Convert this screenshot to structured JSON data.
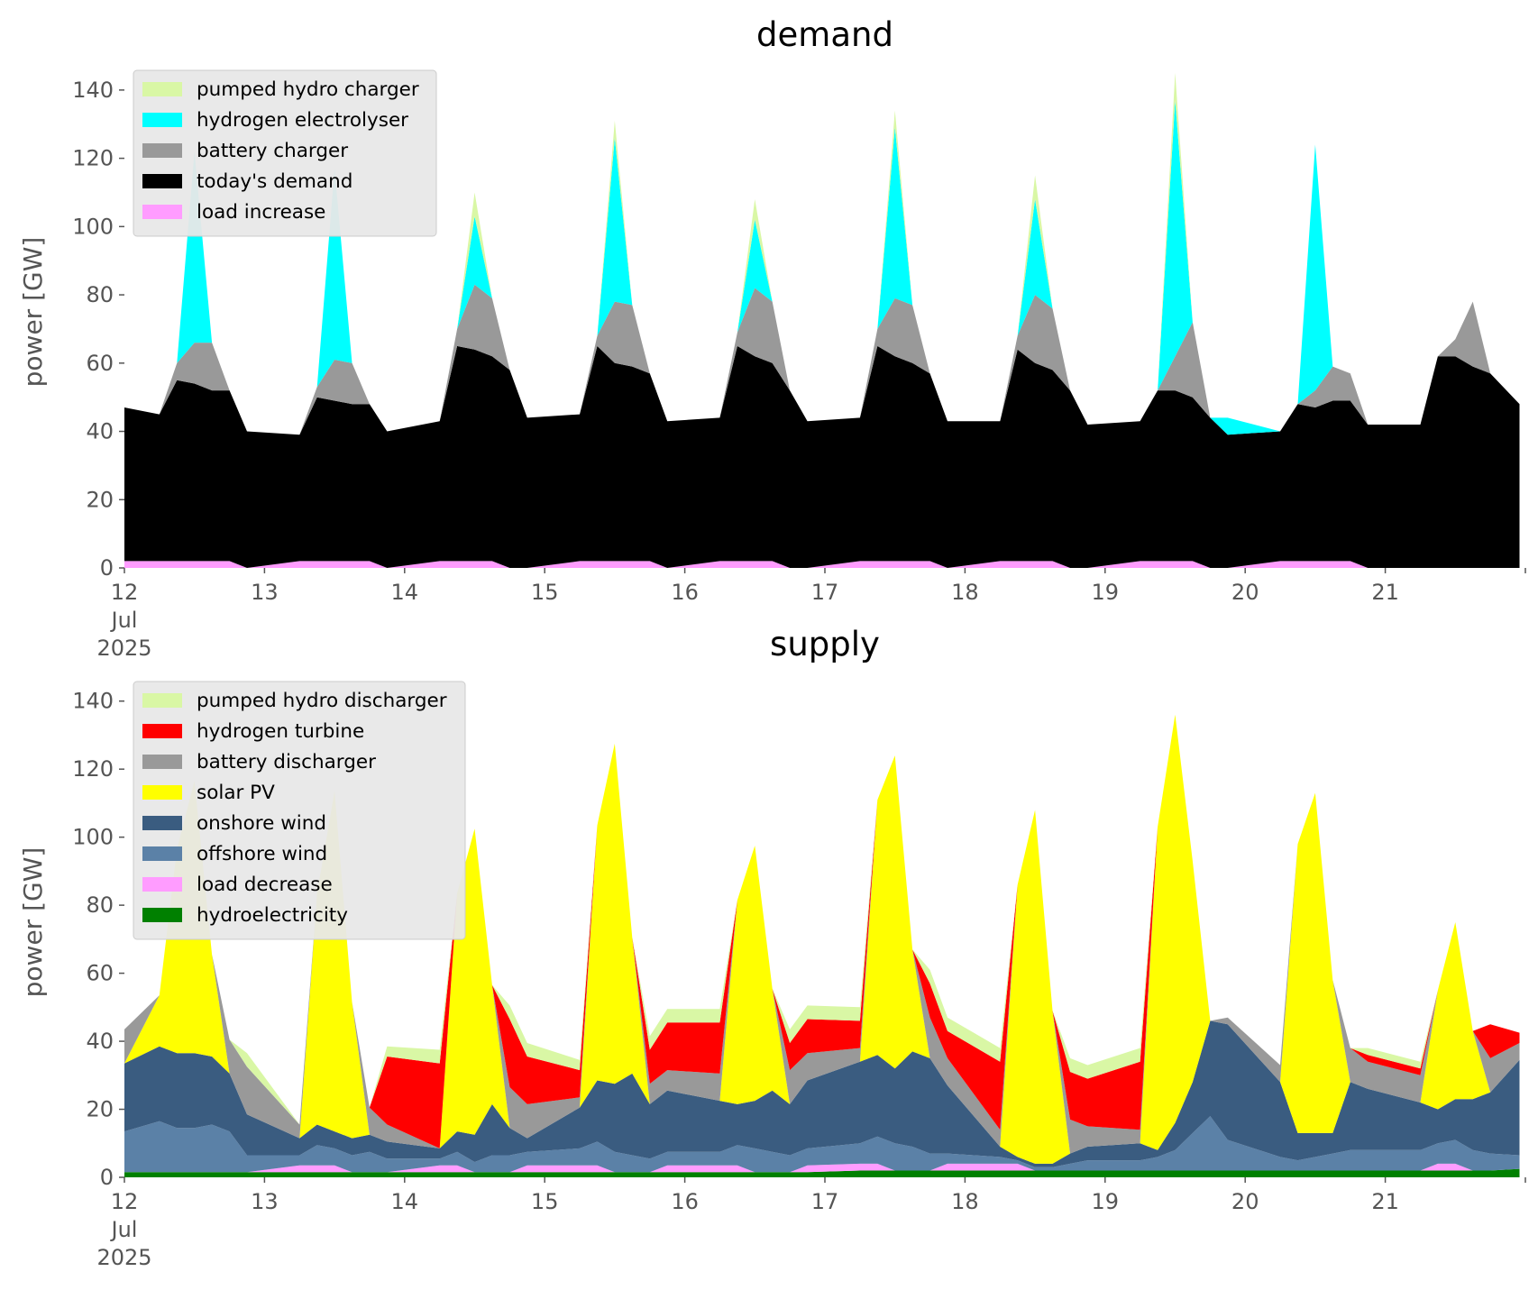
{
  "chart_data": [
    {
      "type": "area",
      "title": "demand",
      "ylabel": "power [GW]",
      "xlabel": "",
      "ylim": [
        0,
        150
      ],
      "xlim": [
        "2025-07-12",
        "2025-07-22"
      ],
      "yticks": [
        0,
        20,
        40,
        60,
        80,
        100,
        120,
        140
      ],
      "xticks": [
        {
          "date": "2025-07-12",
          "label": "12",
          "sub": [
            "Jul",
            "2025"
          ]
        },
        {
          "date": "2025-07-13",
          "label": "13"
        },
        {
          "date": "2025-07-14",
          "label": "14"
        },
        {
          "date": "2025-07-15",
          "label": "15"
        },
        {
          "date": "2025-07-16",
          "label": "16"
        },
        {
          "date": "2025-07-17",
          "label": "17"
        },
        {
          "date": "2025-07-18",
          "label": "18"
        },
        {
          "date": "2025-07-19",
          "label": "19"
        },
        {
          "date": "2025-07-20",
          "label": "20"
        },
        {
          "date": "2025-07-21",
          "label": "21"
        }
      ],
      "grid": false,
      "legend": "top-left",
      "x": [
        "2025-07-12 00:00",
        "2025-07-12 06:00",
        "2025-07-12 09:00",
        "2025-07-12 12:00",
        "2025-07-12 15:00",
        "2025-07-12 18:00",
        "2025-07-12 21:00",
        "2025-07-13 06:00",
        "2025-07-13 09:00",
        "2025-07-13 12:00",
        "2025-07-13 15:00",
        "2025-07-13 18:00",
        "2025-07-13 21:00",
        "2025-07-14 06:00",
        "2025-07-14 09:00",
        "2025-07-14 12:00",
        "2025-07-14 15:00",
        "2025-07-14 18:00",
        "2025-07-14 21:00",
        "2025-07-15 06:00",
        "2025-07-15 09:00",
        "2025-07-15 12:00",
        "2025-07-15 15:00",
        "2025-07-15 18:00",
        "2025-07-15 21:00",
        "2025-07-16 06:00",
        "2025-07-16 09:00",
        "2025-07-16 12:00",
        "2025-07-16 15:00",
        "2025-07-16 18:00",
        "2025-07-16 21:00",
        "2025-07-17 06:00",
        "2025-07-17 09:00",
        "2025-07-17 12:00",
        "2025-07-17 15:00",
        "2025-07-17 18:00",
        "2025-07-17 21:00",
        "2025-07-18 06:00",
        "2025-07-18 09:00",
        "2025-07-18 12:00",
        "2025-07-18 15:00",
        "2025-07-18 18:00",
        "2025-07-18 21:00",
        "2025-07-19 06:00",
        "2025-07-19 09:00",
        "2025-07-19 12:00",
        "2025-07-19 15:00",
        "2025-07-19 18:00",
        "2025-07-19 21:00",
        "2025-07-20 06:00",
        "2025-07-20 09:00",
        "2025-07-20 12:00",
        "2025-07-20 15:00",
        "2025-07-20 18:00",
        "2025-07-20 21:00",
        "2025-07-21 06:00",
        "2025-07-21 09:00",
        "2025-07-21 12:00",
        "2025-07-21 15:00",
        "2025-07-21 18:00",
        "2025-07-21 23:00"
      ],
      "series": [
        {
          "name": "load increase",
          "color": "#ff9cff",
          "values": [
            2,
            2,
            2,
            2,
            2,
            2,
            0,
            2,
            2,
            2,
            2,
            2,
            0,
            2,
            2,
            2,
            2,
            0,
            0,
            2,
            2,
            2,
            2,
            2,
            0,
            2,
            2,
            2,
            2,
            0,
            0,
            2,
            2,
            2,
            2,
            2,
            0,
            2,
            2,
            2,
            2,
            0,
            0,
            2,
            2,
            2,
            2,
            0,
            0,
            2,
            2,
            2,
            2,
            2,
            0,
            0,
            0,
            0,
            0,
            0,
            0
          ]
        },
        {
          "name": "today's demand",
          "color": "#000000",
          "values": [
            45,
            43,
            53,
            52,
            50,
            50,
            40,
            37,
            48,
            47,
            46,
            46,
            40,
            41,
            63,
            62,
            60,
            58,
            44,
            43,
            63,
            58,
            57,
            55,
            43,
            42,
            63,
            60,
            58,
            52,
            43,
            42,
            63,
            60,
            58,
            55,
            43,
            41,
            62,
            58,
            56,
            52,
            42,
            41,
            50,
            50,
            48,
            44,
            39,
            38,
            46,
            45,
            47,
            47,
            42,
            42,
            62,
            62,
            59,
            57,
            48
          ]
        },
        {
          "name": "battery charger",
          "color": "#999999",
          "values": [
            0,
            0,
            5,
            12,
            14,
            0,
            0,
            0,
            3,
            12,
            12,
            0,
            0,
            0,
            5,
            19,
            17,
            0,
            0,
            0,
            3,
            18,
            18,
            0,
            0,
            0,
            4,
            20,
            18,
            0,
            0,
            0,
            5,
            17,
            17,
            0,
            0,
            0,
            4,
            20,
            18,
            0,
            0,
            0,
            0,
            10,
            22,
            0,
            0,
            0,
            0,
            5,
            10,
            8,
            0,
            0,
            0,
            5,
            19,
            0,
            0
          ]
        },
        {
          "name": "hydrogen electrolyser",
          "color": "#00ffff",
          "values": [
            0,
            0,
            0,
            56,
            0,
            0,
            0,
            0,
            0,
            56,
            0,
            0,
            0,
            0,
            0,
            20,
            0,
            0,
            0,
            0,
            0,
            48,
            0,
            0,
            0,
            0,
            0,
            20,
            0,
            0,
            0,
            0,
            0,
            50,
            0,
            0,
            0,
            0,
            0,
            28,
            0,
            0,
            0,
            0,
            0,
            75,
            0,
            0,
            5,
            0,
            0,
            72,
            0,
            0,
            0,
            0,
            0,
            0,
            0,
            0,
            0
          ]
        },
        {
          "name": "pumped hydro charger",
          "color": "#d9f7a5",
          "values": [
            0,
            0,
            0,
            0,
            0,
            0,
            0,
            0,
            0,
            0,
            0,
            0,
            0,
            0,
            0,
            7,
            0,
            0,
            0,
            0,
            0,
            5,
            0,
            0,
            0,
            0,
            0,
            6,
            0,
            0,
            0,
            0,
            0,
            5,
            0,
            0,
            0,
            0,
            0,
            7,
            0,
            0,
            0,
            0,
            0,
            8,
            0,
            0,
            0,
            0,
            0,
            0,
            0,
            0,
            0,
            0,
            0,
            0,
            0,
            0,
            0
          ]
        }
      ]
    },
    {
      "type": "area",
      "title": "supply",
      "ylabel": "power [GW]",
      "xlabel": "",
      "ylim": [
        0,
        150
      ],
      "xlim": [
        "2025-07-12",
        "2025-07-22"
      ],
      "yticks": [
        0,
        20,
        40,
        60,
        80,
        100,
        120,
        140
      ],
      "xticks": [
        {
          "date": "2025-07-12",
          "label": "12",
          "sub": [
            "Jul",
            "2025"
          ]
        },
        {
          "date": "2025-07-13",
          "label": "13"
        },
        {
          "date": "2025-07-14",
          "label": "14"
        },
        {
          "date": "2025-07-15",
          "label": "15"
        },
        {
          "date": "2025-07-16",
          "label": "16"
        },
        {
          "date": "2025-07-17",
          "label": "17"
        },
        {
          "date": "2025-07-18",
          "label": "18"
        },
        {
          "date": "2025-07-19",
          "label": "19"
        },
        {
          "date": "2025-07-20",
          "label": "20"
        },
        {
          "date": "2025-07-21",
          "label": "21"
        }
      ],
      "grid": false,
      "legend": "top-left",
      "x": [
        "2025-07-12 00:00",
        "2025-07-12 06:00",
        "2025-07-12 09:00",
        "2025-07-12 12:00",
        "2025-07-12 15:00",
        "2025-07-12 18:00",
        "2025-07-12 21:00",
        "2025-07-13 06:00",
        "2025-07-13 09:00",
        "2025-07-13 12:00",
        "2025-07-13 15:00",
        "2025-07-13 18:00",
        "2025-07-13 21:00",
        "2025-07-14 06:00",
        "2025-07-14 09:00",
        "2025-07-14 12:00",
        "2025-07-14 15:00",
        "2025-07-14 18:00",
        "2025-07-14 21:00",
        "2025-07-15 06:00",
        "2025-07-15 09:00",
        "2025-07-15 12:00",
        "2025-07-15 15:00",
        "2025-07-15 18:00",
        "2025-07-15 21:00",
        "2025-07-16 06:00",
        "2025-07-16 09:00",
        "2025-07-16 12:00",
        "2025-07-16 15:00",
        "2025-07-16 18:00",
        "2025-07-16 21:00",
        "2025-07-17 06:00",
        "2025-07-17 09:00",
        "2025-07-17 12:00",
        "2025-07-17 15:00",
        "2025-07-17 18:00",
        "2025-07-17 21:00",
        "2025-07-18 06:00",
        "2025-07-18 09:00",
        "2025-07-18 12:00",
        "2025-07-18 15:00",
        "2025-07-18 18:00",
        "2025-07-18 21:00",
        "2025-07-19 06:00",
        "2025-07-19 09:00",
        "2025-07-19 12:00",
        "2025-07-19 15:00",
        "2025-07-19 18:00",
        "2025-07-19 21:00",
        "2025-07-20 06:00",
        "2025-07-20 09:00",
        "2025-07-20 12:00",
        "2025-07-20 15:00",
        "2025-07-20 18:00",
        "2025-07-20 21:00",
        "2025-07-21 06:00",
        "2025-07-21 09:00",
        "2025-07-21 12:00",
        "2025-07-21 15:00",
        "2025-07-21 18:00",
        "2025-07-21 23:00"
      ],
      "series": [
        {
          "name": "hydroelectricity",
          "color": "#008000",
          "values": [
            1.5,
            1.5,
            1.5,
            1.5,
            1.5,
            1.5,
            1.5,
            1.5,
            1.5,
            1.5,
            1.5,
            1.5,
            1.5,
            1.5,
            1.5,
            1.5,
            1.5,
            1.5,
            1.5,
            1.5,
            1.5,
            1.5,
            1.5,
            1.5,
            1.5,
            1.5,
            1.5,
            1.5,
            1.5,
            1.5,
            1.5,
            2,
            2,
            2,
            2,
            2,
            2,
            2,
            2,
            2,
            2,
            2,
            2,
            2,
            2,
            2,
            2,
            2,
            2,
            2,
            2,
            2,
            2,
            2,
            2,
            2,
            2,
            2,
            2,
            2,
            2.5
          ]
        },
        {
          "name": "load decrease",
          "color": "#ff9cff",
          "values": [
            0,
            0,
            0,
            0,
            0,
            0,
            0,
            2,
            2,
            2,
            0,
            0,
            0,
            2,
            2,
            0,
            0,
            0,
            2,
            2,
            2,
            0,
            0,
            0,
            2,
            2,
            2,
            0,
            0,
            0,
            2,
            2,
            2,
            0,
            0,
            0,
            2,
            2,
            2,
            0,
            0,
            0,
            0,
            0,
            0,
            0,
            0,
            0,
            0,
            0,
            0,
            0,
            0,
            0,
            0,
            0,
            2,
            2,
            0,
            0,
            0
          ]
        },
        {
          "name": "offshore wind",
          "color": "#5b81a7",
          "values": [
            12,
            15,
            13,
            13,
            14,
            12,
            5,
            3,
            6,
            5,
            5,
            6,
            4,
            2,
            4,
            3,
            5,
            5,
            4,
            5,
            7,
            6,
            5,
            4,
            4,
            4,
            6,
            7,
            6,
            5,
            5,
            6,
            8,
            8,
            7,
            5,
            3,
            2,
            1,
            1,
            1,
            2,
            3,
            3,
            4,
            6,
            11,
            16,
            9,
            4,
            3,
            4,
            5,
            6,
            6,
            6,
            6,
            7,
            6,
            5,
            4
          ]
        },
        {
          "name": "onshore wind",
          "color": "#3a5c80",
          "values": [
            20,
            22,
            22,
            22,
            20,
            17,
            12,
            5,
            6,
            5,
            5,
            5,
            5,
            3,
            6,
            8,
            15,
            8,
            4,
            12,
            18,
            20,
            24,
            16,
            18,
            15,
            12,
            14,
            18,
            15,
            20,
            24,
            24,
            22,
            28,
            28,
            20,
            3,
            1,
            1,
            1,
            3,
            4,
            5,
            2,
            8,
            15,
            28,
            34,
            22,
            8,
            7,
            6,
            20,
            18,
            14,
            10,
            12,
            15,
            18,
            28
          ]
        },
        {
          "name": "solar PV",
          "color": "#ffff00",
          "values": [
            0,
            15,
            60,
            80,
            30,
            0,
            0,
            0,
            68,
            100,
            40,
            0,
            0,
            0,
            70,
            90,
            35,
            0,
            0,
            0,
            75,
            100,
            40,
            0,
            0,
            0,
            60,
            75,
            30,
            0,
            0,
            0,
            75,
            92,
            30,
            0,
            0,
            0,
            80,
            104,
            45,
            0,
            0,
            0,
            95,
            120,
            65,
            0,
            0,
            0,
            85,
            100,
            45,
            0,
            0,
            0,
            35,
            52,
            20,
            0,
            0
          ]
        },
        {
          "name": "battery discharger",
          "color": "#999999",
          "values": [
            10,
            0,
            0,
            0,
            0,
            10,
            14,
            4,
            0,
            0,
            0,
            8,
            5,
            0,
            0,
            0,
            0,
            12,
            10,
            3,
            0,
            0,
            0,
            6,
            6,
            8,
            0,
            0,
            0,
            10,
            8,
            4,
            0,
            0,
            0,
            12,
            8,
            5,
            0,
            0,
            0,
            10,
            6,
            4,
            0,
            0,
            0,
            0,
            2,
            5,
            0,
            0,
            0,
            10,
            8,
            8,
            0,
            0,
            0,
            10,
            5
          ]
        },
        {
          "name": "hydrogen turbine",
          "color": "#ff0000",
          "values": [
            0,
            0,
            0,
            0,
            0,
            0,
            0,
            0,
            0,
            0,
            0,
            0,
            20,
            25,
            0,
            0,
            0,
            20,
            14,
            8,
            0,
            0,
            0,
            10,
            14,
            15,
            0,
            0,
            0,
            8,
            10,
            8,
            0,
            0,
            0,
            10,
            8,
            20,
            0,
            0,
            0,
            14,
            14,
            20,
            0,
            0,
            0,
            0,
            0,
            0,
            0,
            0,
            0,
            0,
            2,
            2,
            0,
            0,
            0,
            10,
            3
          ]
        },
        {
          "name": "pumped hydro discharger",
          "color": "#d9f7a5",
          "values": [
            0,
            0,
            0,
            0,
            0,
            0,
            4,
            0,
            0,
            0,
            0,
            0,
            3,
            4,
            0,
            0,
            0,
            4,
            4,
            3,
            0,
            0,
            0,
            4,
            4,
            4,
            0,
            0,
            0,
            4,
            4,
            4,
            0,
            0,
            0,
            4,
            4,
            4,
            0,
            0,
            0,
            4,
            4,
            4,
            0,
            0,
            0,
            0,
            0,
            0,
            0,
            0,
            0,
            0,
            2,
            2,
            0,
            0,
            0,
            0,
            0
          ]
        }
      ]
    }
  ]
}
